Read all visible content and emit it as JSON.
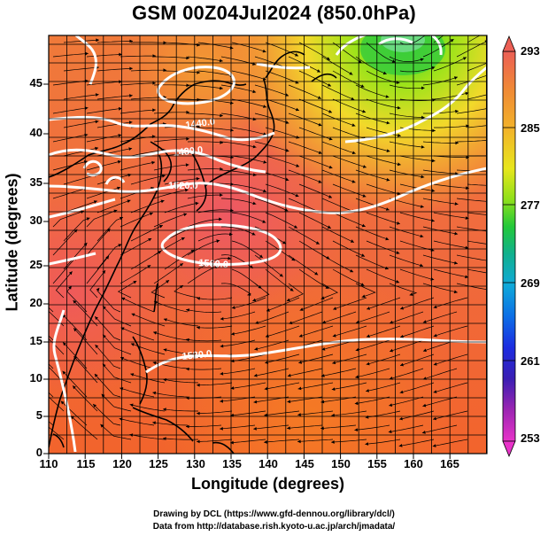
{
  "title": "GSM 00Z04Jul2024 (850.0hPa)",
  "xlabel": "Longitude (degrees)",
  "ylabel": "Latitude  (degrees)",
  "x_ticks": [
    "110",
    "115",
    "120",
    "125",
    "130",
    "135",
    "140",
    "145",
    "150",
    "155",
    "160",
    "165"
  ],
  "y_ticks": [
    "0",
    "5",
    "10",
    "15",
    "20",
    "25",
    "30",
    "35",
    "40",
    "45"
  ],
  "colorbar": {
    "ticks": [
      "293",
      "285",
      "277",
      "269",
      "261",
      "253"
    ],
    "colors": [
      "#ec5f55",
      "#f08a35",
      "#f2b32a",
      "#e8e61c",
      "#8fe01a",
      "#22c83a",
      "#10b08e",
      "#0fa9d9",
      "#0c6ee6",
      "#1c2ce0",
      "#3a1eb3",
      "#7a1fb0",
      "#b52bb5",
      "#e833c9"
    ]
  },
  "contour_labels": [
    "1440.0",
    "1480.0",
    "1520.0",
    "1560.0",
    "1520.0"
  ],
  "credits": {
    "line1": "Drawing by DCL (https://www.gfd-dennou.org/library/dcl/)",
    "line2": "Data from http://database.rish.kyoto-u.ac.jp/arch/jmadata/"
  }
}
